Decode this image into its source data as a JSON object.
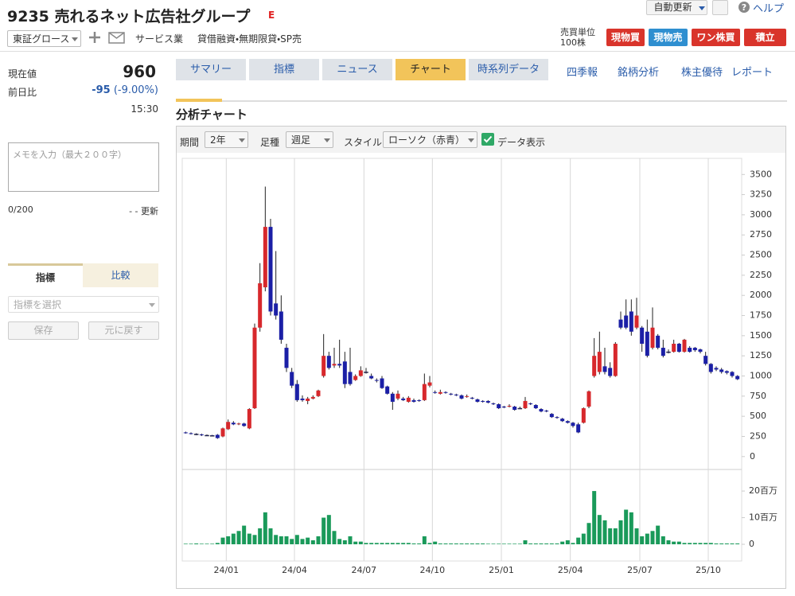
{
  "header": {
    "code": "9235",
    "name": "売れるネット広告社グループ",
    "badge": "E",
    "market": "東証グロース",
    "sector": "サービス業",
    "margin": "貸借融資・無期限貸・SP売",
    "auto_update": "自動更新",
    "help": "ヘルプ",
    "unit_label": "売買単位",
    "unit_value": "100株",
    "buttons": [
      "現物買",
      "現物売",
      "ワン株買",
      "積立"
    ]
  },
  "quote": {
    "price_label": "現在値",
    "price": "960",
    "change_label": "前日比",
    "change": "-95",
    "change_pct": "(-9.00%)",
    "time": "15:30"
  },
  "memo": {
    "placeholder": "メモを入力（最大２００字）",
    "count": "0/200",
    "updated": "- - 更新"
  },
  "indicator": {
    "tabs": [
      "指標",
      "比較"
    ],
    "select": "指標を選択",
    "buttons": [
      "保存",
      "元に戻す"
    ]
  },
  "tabs": [
    "サマリー",
    "指標",
    "ニュース",
    "チャート",
    "時系列データ"
  ],
  "links": [
    "四季報",
    "銘柄分析",
    "株主優待",
    "レポート"
  ],
  "section_title": "分析チャート",
  "toolbar": {
    "period_label": "期間",
    "period": "2年",
    "kind_label": "足種",
    "kind": "週足",
    "style_label": "スタイル",
    "style": "ローソク（赤青）",
    "show_data": "データ表示"
  },
  "chart_data": {
    "type": "candlestick",
    "grid": "x",
    "up_color": "#d7282c",
    "down_color": "#1b1fa6",
    "xlim": [
      -0.5,
      104.5
    ],
    "xticks": [
      {
        "value": 7.65,
        "label": "24/01"
      },
      {
        "value": 20.5,
        "label": "24/04"
      },
      {
        "value": 33.6,
        "label": "24/07"
      },
      {
        "value": 46.5,
        "label": "24/10"
      },
      {
        "value": 59.5,
        "label": "25/01"
      },
      {
        "value": 72.5,
        "label": "25/04"
      },
      {
        "value": 85.6,
        "label": "25/07"
      },
      {
        "value": 98.5,
        "label": "25/10"
      }
    ],
    "ylim": [
      -150,
      3700
    ],
    "yticks": [
      0,
      250,
      500,
      750,
      1000,
      1250,
      1500,
      1750,
      2000,
      2250,
      2500,
      2750,
      3000,
      3250,
      3500
    ],
    "open": [
      300,
      290,
      280,
      275,
      265,
      262,
      270,
      250,
      340,
      420,
      400,
      410,
      350,
      600,
      1600,
      2100,
      2850,
      1900,
      1800,
      1350,
      1050,
      900,
      720,
      690,
      720,
      750,
      1000,
      1250,
      1130,
      1150,
      1180,
      1050,
      950,
      1000,
      1050,
      1000,
      950,
      970,
      870,
      780,
      720,
      720,
      680,
      700,
      700,
      700,
      880,
      800,
      780,
      800,
      780,
      770,
      760,
      740,
      730,
      710,
      690,
      690,
      660,
      650,
      620,
      620,
      620,
      600,
      600,
      660,
      640,
      590,
      570,
      530,
      490,
      470,
      440,
      420,
      400,
      420,
      620,
      1000,
      1050,
      1120,
      1100,
      1000,
      1700,
      1750,
      1800,
      1600,
      1600,
      1550,
      1350,
      1500,
      1350,
      1300,
      1300,
      1400,
      1300,
      1350,
      1350,
      1330,
      1250,
      1150,
      1100,
      1080,
      1060,
      1050,
      1000
    ],
    "high": [
      310,
      300,
      290,
      285,
      275,
      270,
      280,
      360,
      460,
      440,
      420,
      420,
      600,
      1650,
      2400,
      3350,
      2950,
      2550,
      2000,
      1400,
      1100,
      950,
      760,
      740,
      760,
      830,
      1520,
      1300,
      1350,
      1450,
      1300,
      1350,
      1020,
      1120,
      1100,
      1030,
      970,
      1000,
      880,
      800,
      820,
      740,
      750,
      720,
      710,
      1030,
      1000,
      820,
      830,
      810,
      790,
      780,
      770,
      770,
      740,
      720,
      700,
      700,
      670,
      660,
      630,
      650,
      630,
      620,
      740,
      670,
      650,
      600,
      580,
      540,
      500,
      480,
      450,
      430,
      420,
      610,
      820,
      1470,
      1550,
      1350,
      1170,
      1420,
      1800,
      1950,
      1950,
      1970,
      1620,
      1700,
      1850,
      1520,
      1450,
      1330,
      1450,
      1410,
      1460,
      1370,
      1360,
      1340,
      1300,
      1160,
      1120,
      1100,
      1070,
      1060,
      1010
    ],
    "low": [
      285,
      275,
      265,
      255,
      255,
      250,
      220,
      240,
      330,
      390,
      390,
      370,
      340,
      590,
      1550,
      2050,
      1750,
      1700,
      1400,
      1050,
      850,
      680,
      680,
      650,
      710,
      740,
      980,
      1080,
      1100,
      1100,
      850,
      880,
      940,
      990,
      1030,
      960,
      920,
      840,
      770,
      580,
      700,
      690,
      670,
      670,
      680,
      690,
      860,
      780,
      770,
      780,
      760,
      750,
      710,
      730,
      710,
      670,
      670,
      660,
      640,
      590,
      600,
      610,
      570,
      590,
      590,
      640,
      590,
      550,
      550,
      480,
      470,
      430,
      410,
      360,
      290,
      410,
      600,
      980,
      1020,
      1020,
      980,
      990,
      1580,
      1580,
      1500,
      1580,
      1300,
      1230,
      1330,
      1330,
      1230,
      1280,
      1290,
      1290,
      1290,
      1290,
      1300,
      1280,
      1130,
      1030,
      1060,
      1030,
      1020,
      980,
      950
    ],
    "close": [
      290,
      280,
      275,
      265,
      262,
      260,
      230,
      350,
      430,
      400,
      410,
      380,
      590,
      1600,
      2150,
      2850,
      1800,
      1750,
      1450,
      1100,
      880,
      700,
      700,
      720,
      740,
      820,
      1250,
      1100,
      1150,
      1130,
      900,
      900,
      1000,
      1070,
      1050,
      970,
      940,
      850,
      780,
      680,
      780,
      700,
      730,
      680,
      690,
      900,
      920,
      790,
      800,
      790,
      770,
      760,
      720,
      750,
      720,
      680,
      680,
      670,
      650,
      600,
      610,
      630,
      580,
      600,
      690,
      650,
      600,
      560,
      560,
      490,
      480,
      440,
      420,
      380,
      300,
      600,
      810,
      1250,
      1300,
      1050,
      1000,
      1400,
      1600,
      1600,
      1550,
      1750,
      1400,
      1250,
      1600,
      1350,
      1250,
      1300,
      1400,
      1300,
      1450,
      1300,
      1320,
      1300,
      1150,
      1050,
      1080,
      1050,
      1040,
      1000,
      960
    ],
    "volume": {
      "color": "#1a9a5a",
      "ylim": [
        0,
        26
      ],
      "yticks": [
        0,
        {
          "value": 10,
          "label": "10百万"
        },
        {
          "value": 20,
          "label": "20百万"
        }
      ],
      "values": [
        0.2,
        0.2,
        0.3,
        0.2,
        0.2,
        0.2,
        0.5,
        2.5,
        3,
        4,
        5,
        7,
        4,
        3.5,
        6,
        12,
        6,
        3.5,
        3,
        3,
        2,
        3.5,
        2,
        2.5,
        1.5,
        3,
        10,
        11,
        5,
        2,
        1.5,
        3,
        1,
        1,
        0.5,
        0.5,
        0.5,
        0.5,
        0.5,
        0.5,
        0.5,
        0.5,
        0.5,
        0.3,
        0.3,
        3,
        0.5,
        1,
        0.3,
        0.3,
        0.3,
        0.3,
        0.3,
        0.3,
        0.3,
        0.3,
        0.3,
        0.2,
        0.2,
        0.2,
        0.2,
        0.2,
        0.2,
        0.2,
        1.5,
        0.3,
        0.3,
        0.3,
        0.3,
        0.3,
        0.3,
        1,
        1.5,
        0.5,
        2.5,
        4,
        8,
        20,
        11,
        9,
        6,
        6,
        9,
        13,
        12,
        6,
        3,
        4,
        5,
        7,
        3,
        1.5,
        1,
        1,
        0.5,
        0.5,
        0.5,
        0.5,
        0.5,
        0.5,
        0.3,
        0.3,
        0.3,
        0.3,
        0.3
      ]
    }
  }
}
